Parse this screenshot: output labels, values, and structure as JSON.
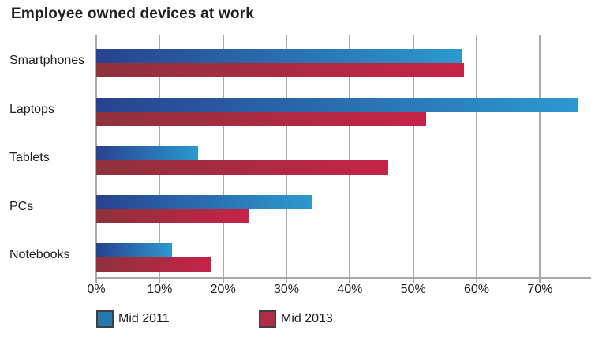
{
  "title": "Employee owned devices at work",
  "colors": {
    "background": "#ffffff",
    "title_text": "#1f1f1f",
    "axis_text": "#1f1f1f",
    "gridline": "#aaaaaa",
    "axis_line": "#a8a8a8",
    "legend_swatch_border": "#3f3f3f",
    "series_2011_solid": "#2878b0",
    "series_2013_solid": "#b02d49"
  },
  "chart_data": {
    "type": "bar",
    "orientation": "horizontal",
    "title": "Employee owned devices at work",
    "xlabel": "",
    "ylabel": "",
    "categories": [
      "Smartphones",
      "Laptops",
      "Tablets",
      "PCs",
      "Notebooks"
    ],
    "series": [
      {
        "name": "Mid 2011",
        "values": [
          57.6,
          76,
          16,
          34,
          12
        ],
        "color": "#2878b0",
        "gradient": [
          "#28428f",
          "#2c99ce"
        ]
      },
      {
        "name": "Mid 2013",
        "values": [
          58,
          52,
          46,
          24,
          18
        ],
        "color": "#b02d49",
        "gradient": [
          "#8f323c",
          "#c52348"
        ]
      }
    ],
    "value_unit": "%",
    "xlim": [
      0,
      77.8
    ],
    "x_tick_values": [
      0,
      10,
      20,
      30,
      40,
      50,
      60,
      70
    ],
    "x_tick_labels": [
      "0%",
      "10%",
      "20%",
      "30%",
      "40%",
      "50%",
      "60%",
      "70%"
    ],
    "grid": "vertical",
    "legend_position": "bottom"
  }
}
